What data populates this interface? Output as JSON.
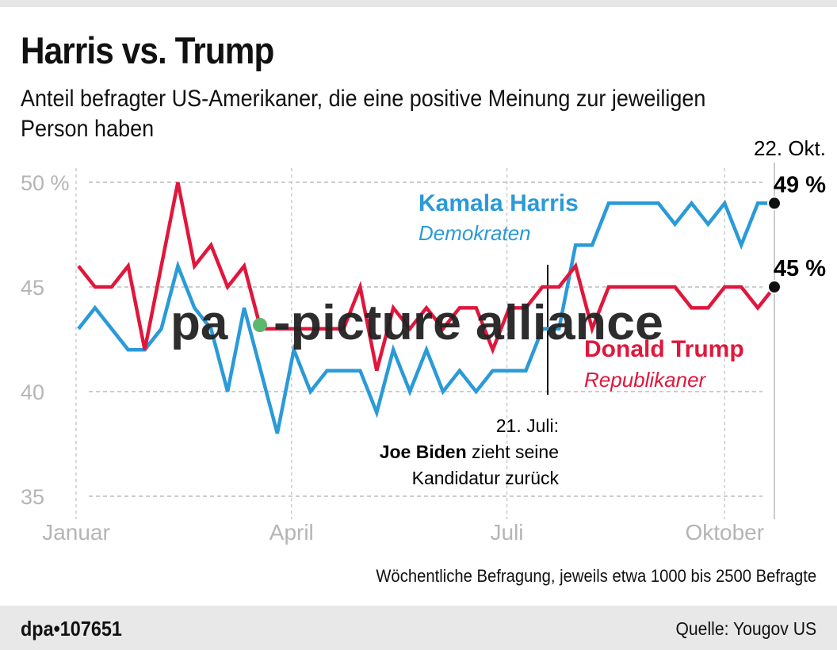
{
  "title": "Harris vs. Trump",
  "subtitle": "Anteil befragter US-Amerikaner, die eine positive Meinung zur jeweiligen Person haben",
  "note": "Wöchentliche Befragung, jeweils etwa 1000 bis 2500 Befragte",
  "footer": {
    "id": "dpa•107651",
    "source": "Quelle: Yougov US"
  },
  "watermark": {
    "text_left": "pa",
    "text_right": "-picture alliance"
  },
  "chart_data": {
    "type": "line",
    "ylim": [
      35,
      50
    ],
    "yticks": [
      {
        "value": 50,
        "label": "50 %"
      },
      {
        "value": 45,
        "label": "45"
      },
      {
        "value": 40,
        "label": "40"
      },
      {
        "value": 35,
        "label": "35"
      }
    ],
    "xticks": [
      {
        "date": "2024-01-01",
        "label": "Januar"
      },
      {
        "date": "2024-04-01",
        "label": "April"
      },
      {
        "date": "2024-07-01",
        "label": "Juli"
      },
      {
        "date": "2024-10-01",
        "label": "Oktober"
      }
    ],
    "grid": true,
    "x_start": "2024-01-02",
    "x_interval": "weekly",
    "series": [
      {
        "name": "Kamala Harris",
        "party": "Demokraten",
        "color": "#2a9ad8",
        "values": [
          43,
          44,
          43,
          42,
          42,
          43,
          46,
          44,
          43,
          40,
          44,
          41,
          38,
          42,
          40,
          41,
          41,
          41,
          39,
          42,
          40,
          42,
          40,
          41,
          40,
          41,
          41,
          41,
          43,
          43,
          47,
          47,
          49,
          49,
          49,
          49,
          48,
          49,
          48,
          49,
          47,
          49,
          49
        ],
        "end_label": "49 %"
      },
      {
        "name": "Donald Trump",
        "party": "Republikaner",
        "color": "#e0173c",
        "values": [
          46,
          45,
          45,
          46,
          42,
          46,
          50,
          46,
          47,
          45,
          46,
          43,
          43,
          43,
          43,
          43,
          43,
          45,
          41,
          44,
          43,
          44,
          43,
          44,
          44,
          42,
          44,
          44,
          45,
          45,
          46,
          43,
          45,
          45,
          45,
          45,
          45,
          44,
          44,
          45,
          45,
          44,
          45
        ],
        "end_label": "45 %"
      }
    ],
    "end_date": {
      "date": "2024-10-22",
      "label": "22. Okt."
    },
    "annotation": {
      "date": "2024-07-21",
      "line1": "21. Juli:",
      "bold": "Joe Biden",
      "rest": " zieht seine",
      "line3": "Kandidatur zurück"
    }
  }
}
